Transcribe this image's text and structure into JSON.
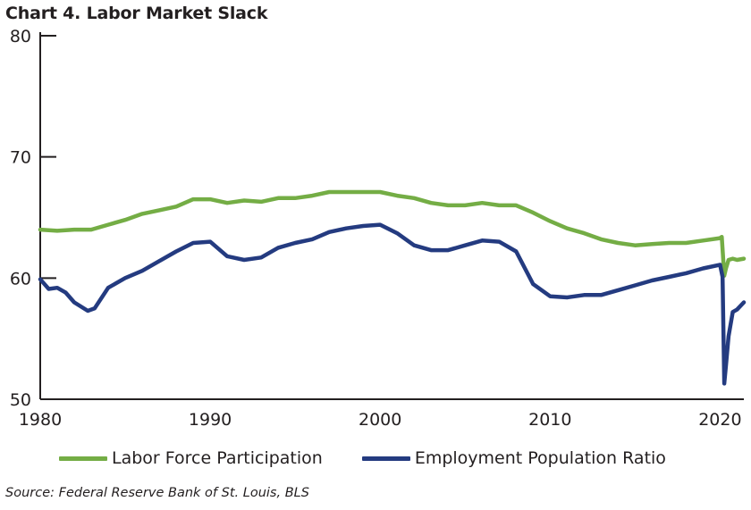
{
  "chart_data": {
    "type": "line",
    "title": "Chart 4. Labor Market Slack",
    "source": "Source: Federal Reserve Bank of St. Louis, BLS",
    "xlim": [
      1980,
      2021.4
    ],
    "ylim": [
      50,
      80
    ],
    "x_ticks": [
      1980,
      1990,
      2000,
      2010,
      2020
    ],
    "y_ticks": [
      50,
      60,
      70,
      80
    ],
    "grid": false,
    "legend_position": "bottom",
    "series": [
      {
        "name": "Labor Force Participation",
        "color": "#74ad45",
        "points": [
          [
            1980,
            64.0
          ],
          [
            1981,
            63.9
          ],
          [
            1982,
            64.0
          ],
          [
            1983,
            64.0
          ],
          [
            1984,
            64.4
          ],
          [
            1985,
            64.8
          ],
          [
            1986,
            65.3
          ],
          [
            1987,
            65.6
          ],
          [
            1988,
            65.9
          ],
          [
            1989,
            66.5
          ],
          [
            1990,
            66.5
          ],
          [
            1991,
            66.2
          ],
          [
            1992,
            66.4
          ],
          [
            1993,
            66.3
          ],
          [
            1994,
            66.6
          ],
          [
            1995,
            66.6
          ],
          [
            1996,
            66.8
          ],
          [
            1997,
            67.1
          ],
          [
            1998,
            67.1
          ],
          [
            1999,
            67.1
          ],
          [
            2000,
            67.1
          ],
          [
            2001,
            66.8
          ],
          [
            2002,
            66.6
          ],
          [
            2003,
            66.2
          ],
          [
            2004,
            66.0
          ],
          [
            2005,
            66.0
          ],
          [
            2006,
            66.2
          ],
          [
            2007,
            66.0
          ],
          [
            2008,
            66.0
          ],
          [
            2009,
            65.4
          ],
          [
            2010,
            64.7
          ],
          [
            2011,
            64.1
          ],
          [
            2012,
            63.7
          ],
          [
            2013,
            63.2
          ],
          [
            2014,
            62.9
          ],
          [
            2015,
            62.7
          ],
          [
            2016,
            62.8
          ],
          [
            2017,
            62.9
          ],
          [
            2018,
            62.9
          ],
          [
            2019,
            63.1
          ],
          [
            2020.0,
            63.3
          ],
          [
            2020.1,
            63.4
          ],
          [
            2020.25,
            60.2
          ],
          [
            2020.35,
            60.8
          ],
          [
            2020.5,
            61.5
          ],
          [
            2020.75,
            61.6
          ],
          [
            2021.0,
            61.5
          ],
          [
            2021.4,
            61.6
          ]
        ]
      },
      {
        "name": "Employment Population Ratio",
        "color": "#243b80",
        "points": [
          [
            1980,
            59.9
          ],
          [
            1980.5,
            59.1
          ],
          [
            1981,
            59.2
          ],
          [
            1981.5,
            58.8
          ],
          [
            1982,
            58.0
          ],
          [
            1982.8,
            57.3
          ],
          [
            1983.2,
            57.5
          ],
          [
            1984,
            59.2
          ],
          [
            1985,
            60.0
          ],
          [
            1986,
            60.6
          ],
          [
            1987,
            61.4
          ],
          [
            1988,
            62.2
          ],
          [
            1989,
            62.9
          ],
          [
            1990,
            63.0
          ],
          [
            1991,
            61.8
          ],
          [
            1992,
            61.5
          ],
          [
            1993,
            61.7
          ],
          [
            1994,
            62.5
          ],
          [
            1995,
            62.9
          ],
          [
            1996,
            63.2
          ],
          [
            1997,
            63.8
          ],
          [
            1998,
            64.1
          ],
          [
            1999,
            64.3
          ],
          [
            2000,
            64.4
          ],
          [
            2001,
            63.7
          ],
          [
            2002,
            62.7
          ],
          [
            2003,
            62.3
          ],
          [
            2004,
            62.3
          ],
          [
            2005,
            62.7
          ],
          [
            2006,
            63.1
          ],
          [
            2007,
            63.0
          ],
          [
            2008,
            62.2
          ],
          [
            2009,
            59.5
          ],
          [
            2010,
            58.5
          ],
          [
            2011,
            58.4
          ],
          [
            2012,
            58.6
          ],
          [
            2013,
            58.6
          ],
          [
            2014,
            59.0
          ],
          [
            2015,
            59.4
          ],
          [
            2016,
            59.8
          ],
          [
            2017,
            60.1
          ],
          [
            2018,
            60.4
          ],
          [
            2019,
            60.8
          ],
          [
            2020.0,
            61.1
          ],
          [
            2020.15,
            60.1
          ],
          [
            2020.25,
            51.3
          ],
          [
            2020.35,
            52.8
          ],
          [
            2020.5,
            55.2
          ],
          [
            2020.75,
            57.2
          ],
          [
            2021.0,
            57.4
          ],
          [
            2021.4,
            58.0
          ]
        ]
      }
    ]
  }
}
